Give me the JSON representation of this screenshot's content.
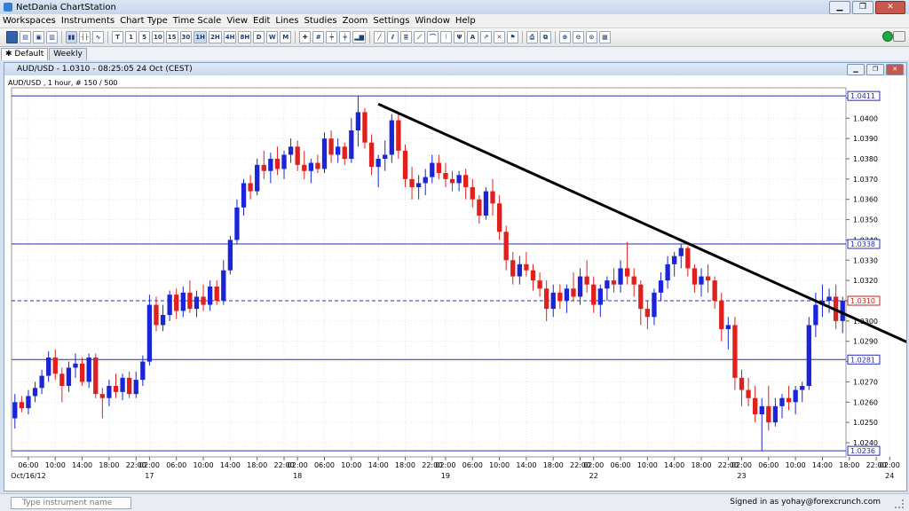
{
  "app": {
    "title": "NetDania ChartStation",
    "signed_in": "Signed in as yohay@forexcrunch.com"
  },
  "menu": [
    "Workspaces",
    "Instruments",
    "Chart Type",
    "Time Scale",
    "View",
    "Edit",
    "Lines",
    "Studies",
    "Zoom",
    "Settings",
    "Window",
    "Help"
  ],
  "toolbar": {
    "timeframes": [
      "T",
      "1",
      "5",
      "10",
      "15",
      "30",
      "1H",
      "2H",
      "4H",
      "8H",
      "D",
      "W",
      "M"
    ]
  },
  "tabs": {
    "default": "Default",
    "weekly": "Weekly"
  },
  "chart_window": {
    "title": "AUD/USD - 1.0310 - 08:25:05  24 Oct (CEST)"
  },
  "search": {
    "placeholder": "Type instrument name"
  },
  "colors": {
    "up": "#1a24d8",
    "down": "#e0201c",
    "hline": "#2b2bb3",
    "trend": "#000000"
  },
  "chart_data": {
    "type": "candlestick",
    "title": "AUD/USD , 1 hour, # 150 / 500",
    "ylim": [
      1.0233,
      1.0415
    ],
    "yticks": [
      "1.0410",
      "1.0400",
      "1.0390",
      "1.0380",
      "1.0370",
      "1.0360",
      "1.0350",
      "1.0340",
      "1.0330",
      "1.0320",
      "1.0310",
      "1.0300",
      "1.0290",
      "1.0280",
      "1.0270",
      "1.0260",
      "1.0250",
      "1.0240"
    ],
    "hlines": [
      {
        "value": 1.0411,
        "label": "1.0411",
        "style": "solid"
      },
      {
        "value": 1.0338,
        "label": "1.0338",
        "style": "solid"
      },
      {
        "value": 1.031,
        "label": "1.0310",
        "style": "dashed",
        "current": true
      },
      {
        "value": 1.0281,
        "label": "1.0281",
        "style": "solid"
      },
      {
        "value": 1.0236,
        "label": "1.0236",
        "style": "solid"
      }
    ],
    "trendline": {
      "start": {
        "bar": 54,
        "value": 1.0407
      },
      "end": {
        "bar": 137,
        "value": 1.0283
      }
    },
    "xticks": [
      {
        "bar": 2,
        "time": "06:00",
        "day": "Oct/16/12"
      },
      {
        "bar": 6,
        "time": "10:00"
      },
      {
        "bar": 10,
        "time": "14:00"
      },
      {
        "bar": 14,
        "time": "18:00"
      },
      {
        "bar": 18,
        "time": "22:00"
      },
      {
        "bar": 20,
        "time": "02:00",
        "day": "17"
      },
      {
        "bar": 24,
        "time": "06:00"
      },
      {
        "bar": 28,
        "time": "10:00"
      },
      {
        "bar": 32,
        "time": "14:00"
      },
      {
        "bar": 36,
        "time": "18:00"
      },
      {
        "bar": 40,
        "time": "22:00"
      },
      {
        "bar": 42,
        "time": "02:00",
        "day": "18"
      },
      {
        "bar": 46,
        "time": "06:00"
      },
      {
        "bar": 50,
        "time": "10:00"
      },
      {
        "bar": 54,
        "time": "14:00"
      },
      {
        "bar": 58,
        "time": "18:00"
      },
      {
        "bar": 62,
        "time": "22:00"
      },
      {
        "bar": 64,
        "time": "02:00",
        "day": "19"
      },
      {
        "bar": 68,
        "time": "06:00"
      },
      {
        "bar": 72,
        "time": "10:00"
      },
      {
        "bar": 76,
        "time": "14:00"
      },
      {
        "bar": 80,
        "time": "18:00"
      },
      {
        "bar": 84,
        "time": "22:00"
      },
      {
        "bar": 86,
        "time": "02:00",
        "day": "22"
      },
      {
        "bar": 90,
        "time": "06:00"
      },
      {
        "bar": 94,
        "time": "10:00"
      },
      {
        "bar": 98,
        "time": "14:00"
      },
      {
        "bar": 102,
        "time": "18:00"
      },
      {
        "bar": 106,
        "time": "22:00"
      },
      {
        "bar": 108,
        "time": "02:00",
        "day": "23"
      },
      {
        "bar": 112,
        "time": "06:00"
      },
      {
        "bar": 116,
        "time": "10:00"
      },
      {
        "bar": 120,
        "time": "14:00"
      },
      {
        "bar": 124,
        "time": "18:00"
      },
      {
        "bar": 128,
        "time": "22:00"
      },
      {
        "bar": 130,
        "time": "02:00",
        "day": "24"
      },
      {
        "bar": 134,
        "time": "06:00"
      },
      {
        "bar": 138,
        "time": "10:00"
      },
      {
        "bar": 142,
        "time": "14:00"
      },
      {
        "bar": 146,
        "time": "18:00"
      }
    ],
    "ohlc": [
      [
        1.0252,
        1.0264,
        1.0247,
        1.026
      ],
      [
        1.026,
        1.0263,
        1.0255,
        1.0257
      ],
      [
        1.0257,
        1.0266,
        1.0254,
        1.0263
      ],
      [
        1.0263,
        1.027,
        1.026,
        1.0267
      ],
      [
        1.0267,
        1.0276,
        1.0264,
        1.0273
      ],
      [
        1.0273,
        1.0285,
        1.027,
        1.0282
      ],
      [
        1.0282,
        1.0286,
        1.0271,
        1.0274
      ],
      [
        1.0274,
        1.0277,
        1.026,
        1.0268
      ],
      [
        1.0268,
        1.028,
        1.0265,
        1.0277
      ],
      [
        1.0277,
        1.0284,
        1.0272,
        1.0279
      ],
      [
        1.0279,
        1.0282,
        1.0268,
        1.027
      ],
      [
        1.027,
        1.0284,
        1.0267,
        1.0282
      ],
      [
        1.0282,
        1.0284,
        1.0262,
        1.0264
      ],
      [
        1.0264,
        1.0267,
        1.0252,
        1.0262
      ],
      [
        1.0262,
        1.0271,
        1.0258,
        1.0268
      ],
      [
        1.0268,
        1.0274,
        1.0262,
        1.0265
      ],
      [
        1.0265,
        1.0274,
        1.0261,
        1.0272
      ],
      [
        1.0272,
        1.0275,
        1.0262,
        1.0264
      ],
      [
        1.0264,
        1.0275,
        1.0262,
        1.0271
      ],
      [
        1.0271,
        1.0283,
        1.0268,
        1.028
      ],
      [
        1.028,
        1.0313,
        1.0278,
        1.0308
      ],
      [
        1.0308,
        1.0312,
        1.0295,
        1.0298
      ],
      [
        1.0298,
        1.0308,
        1.0295,
        1.0303
      ],
      [
        1.0303,
        1.0315,
        1.03,
        1.0313
      ],
      [
        1.0313,
        1.0316,
        1.0301,
        1.0305
      ],
      [
        1.0305,
        1.0317,
        1.0302,
        1.0314
      ],
      [
        1.0314,
        1.032,
        1.0304,
        1.0306
      ],
      [
        1.0306,
        1.0315,
        1.0302,
        1.0312
      ],
      [
        1.0312,
        1.0318,
        1.0305,
        1.0308
      ],
      [
        1.0308,
        1.032,
        1.0305,
        1.0317
      ],
      [
        1.0317,
        1.032,
        1.0308,
        1.031
      ],
      [
        1.031,
        1.033,
        1.0308,
        1.0325
      ],
      [
        1.0325,
        1.0342,
        1.0323,
        1.034
      ],
      [
        1.034,
        1.036,
        1.0338,
        1.0356
      ],
      [
        1.0356,
        1.037,
        1.0352,
        1.0368
      ],
      [
        1.0368,
        1.0372,
        1.036,
        1.0364
      ],
      [
        1.0364,
        1.038,
        1.0362,
        1.0377
      ],
      [
        1.0377,
        1.0384,
        1.037,
        1.0374
      ],
      [
        1.0374,
        1.0383,
        1.0368,
        1.038
      ],
      [
        1.038,
        1.0386,
        1.0372,
        1.0375
      ],
      [
        1.0375,
        1.0384,
        1.037,
        1.0382
      ],
      [
        1.0382,
        1.039,
        1.0378,
        1.0386
      ],
      [
        1.0386,
        1.0389,
        1.0374,
        1.0377
      ],
      [
        1.0377,
        1.0384,
        1.037,
        1.0374
      ],
      [
        1.0374,
        1.038,
        1.0368,
        1.0378
      ],
      [
        1.0378,
        1.0382,
        1.0373,
        1.0375
      ],
      [
        1.0375,
        1.0393,
        1.0373,
        1.039
      ],
      [
        1.039,
        1.0394,
        1.0378,
        1.0382
      ],
      [
        1.0382,
        1.039,
        1.0378,
        1.0386
      ],
      [
        1.0386,
        1.0388,
        1.0377,
        1.038
      ],
      [
        1.038,
        1.04,
        1.0378,
        1.0394
      ],
      [
        1.0394,
        1.0411,
        1.0386,
        1.0403
      ],
      [
        1.0403,
        1.0405,
        1.0385,
        1.0388
      ],
      [
        1.0388,
        1.0392,
        1.0372,
        1.0376
      ],
      [
        1.0376,
        1.0382,
        1.0366,
        1.038
      ],
      [
        1.038,
        1.0389,
        1.0374,
        1.0382
      ],
      [
        1.0382,
        1.0402,
        1.0378,
        1.0399
      ],
      [
        1.0399,
        1.0402,
        1.038,
        1.0384
      ],
      [
        1.0384,
        1.0387,
        1.0366,
        1.037
      ],
      [
        1.037,
        1.0376,
        1.036,
        1.0366
      ],
      [
        1.0366,
        1.0372,
        1.036,
        1.0368
      ],
      [
        1.0368,
        1.0375,
        1.0362,
        1.0371
      ],
      [
        1.0371,
        1.0382,
        1.0368,
        1.0378
      ],
      [
        1.0378,
        1.0382,
        1.037,
        1.0373
      ],
      [
        1.0373,
        1.0378,
        1.0366,
        1.037
      ],
      [
        1.037,
        1.0374,
        1.0364,
        1.0368
      ],
      [
        1.0368,
        1.0374,
        1.0364,
        1.0372
      ],
      [
        1.0372,
        1.0375,
        1.036,
        1.0366
      ],
      [
        1.0366,
        1.037,
        1.0356,
        1.036
      ],
      [
        1.036,
        1.0362,
        1.0348,
        1.0352
      ],
      [
        1.0352,
        1.0366,
        1.035,
        1.0364
      ],
      [
        1.0364,
        1.037,
        1.0352,
        1.0358
      ],
      [
        1.0358,
        1.0362,
        1.034,
        1.0344
      ],
      [
        1.0344,
        1.0347,
        1.0325,
        1.033
      ],
      [
        1.033,
        1.0334,
        1.0318,
        1.0322
      ],
      [
        1.0322,
        1.0332,
        1.0318,
        1.0328
      ],
      [
        1.0328,
        1.0334,
        1.0322,
        1.0325
      ],
      [
        1.0325,
        1.0328,
        1.0315,
        1.032
      ],
      [
        1.032,
        1.0324,
        1.0312,
        1.0316
      ],
      [
        1.0316,
        1.032,
        1.03,
        1.0306
      ],
      [
        1.0306,
        1.0318,
        1.0302,
        1.0314
      ],
      [
        1.0314,
        1.0318,
        1.0306,
        1.031
      ],
      [
        1.031,
        1.0318,
        1.0304,
        1.0316
      ],
      [
        1.0316,
        1.0324,
        1.031,
        1.0312
      ],
      [
        1.0312,
        1.0326,
        1.0308,
        1.0322
      ],
      [
        1.0322,
        1.033,
        1.0314,
        1.0318
      ],
      [
        1.0318,
        1.0322,
        1.0304,
        1.0308
      ],
      [
        1.0308,
        1.0318,
        1.0302,
        1.0316
      ],
      [
        1.0316,
        1.0322,
        1.031,
        1.032
      ],
      [
        1.032,
        1.0326,
        1.0314,
        1.0318
      ],
      [
        1.0318,
        1.033,
        1.0314,
        1.0326
      ],
      [
        1.0326,
        1.0339,
        1.0318,
        1.0322
      ],
      [
        1.0322,
        1.0326,
        1.0312,
        1.0318
      ],
      [
        1.0318,
        1.032,
        1.0298,
        1.0306
      ],
      [
        1.0306,
        1.031,
        1.0296,
        1.0302
      ],
      [
        1.0302,
        1.0316,
        1.0298,
        1.0314
      ],
      [
        1.0314,
        1.0324,
        1.031,
        1.032
      ],
      [
        1.032,
        1.0332,
        1.0316,
        1.0328
      ],
      [
        1.0328,
        1.0334,
        1.0322,
        1.0332
      ],
      [
        1.0332,
        1.0338,
        1.0326,
        1.0336
      ],
      [
        1.0336,
        1.0337,
        1.0322,
        1.0326
      ],
      [
        1.0326,
        1.0328,
        1.0314,
        1.0318
      ],
      [
        1.0318,
        1.0326,
        1.0312,
        1.0322
      ],
      [
        1.0322,
        1.0328,
        1.0314,
        1.032
      ],
      [
        1.032,
        1.0322,
        1.0306,
        1.031
      ],
      [
        1.031,
        1.0314,
        1.029,
        1.0296
      ],
      [
        1.0296,
        1.0302,
        1.0286,
        1.0298
      ],
      [
        1.0298,
        1.0302,
        1.0266,
        1.0272
      ],
      [
        1.0272,
        1.0276,
        1.0258,
        1.0266
      ],
      [
        1.0266,
        1.0272,
        1.0258,
        1.0262
      ],
      [
        1.0262,
        1.0268,
        1.025,
        1.0254
      ],
      [
        1.0254,
        1.0262,
        1.0236,
        1.0258
      ],
      [
        1.0258,
        1.0268,
        1.0246,
        1.025
      ],
      [
        1.025,
        1.0262,
        1.0248,
        1.0258
      ],
      [
        1.0258,
        1.0264,
        1.0252,
        1.0262
      ],
      [
        1.0262,
        1.0268,
        1.0256,
        1.026
      ],
      [
        1.026,
        1.0268,
        1.0254,
        1.0266
      ],
      [
        1.0266,
        1.027,
        1.026,
        1.0268
      ],
      [
        1.0268,
        1.0302,
        1.0266,
        1.0298
      ],
      [
        1.0298,
        1.0314,
        1.0292,
        1.0308
      ],
      [
        1.0308,
        1.0318,
        1.0302,
        1.031
      ],
      [
        1.031,
        1.0316,
        1.0304,
        1.0312
      ],
      [
        1.0312,
        1.0318,
        1.0296,
        1.03
      ],
      [
        1.03,
        1.0312,
        1.0294,
        1.031
      ]
    ]
  }
}
